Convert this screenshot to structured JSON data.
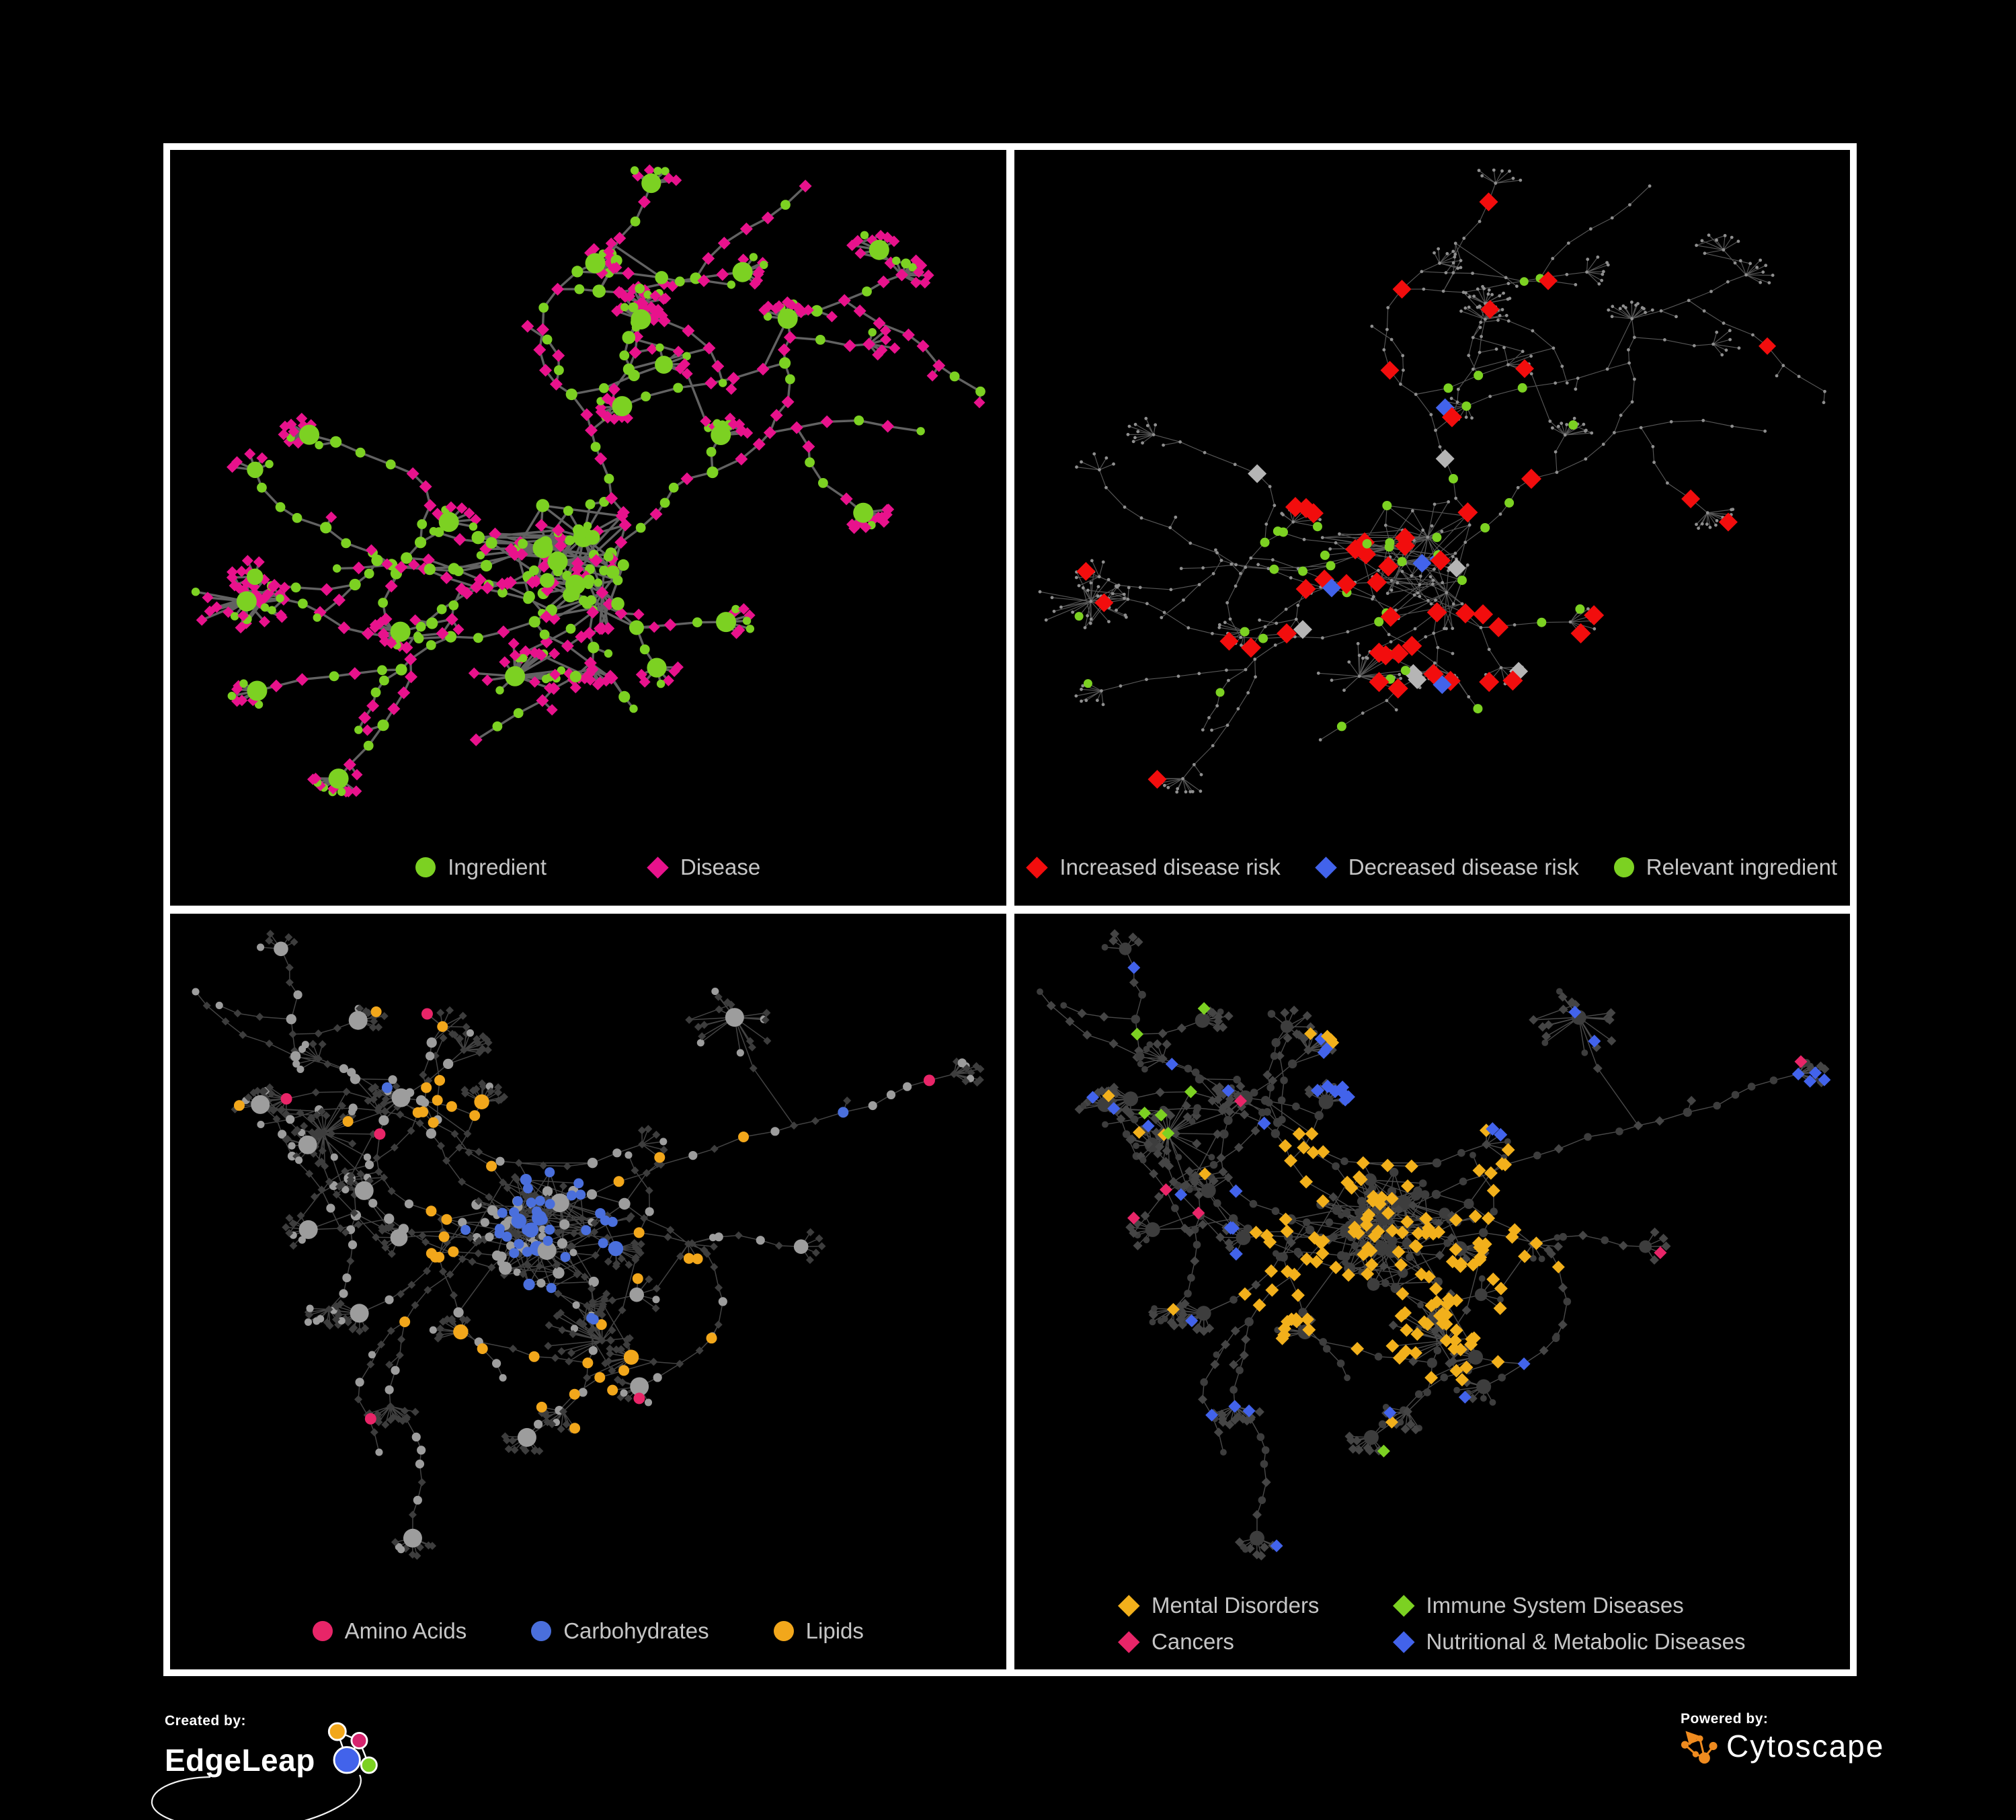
{
  "panels": [
    {
      "name": "ingredient-disease-network",
      "style": "p1",
      "row": 0,
      "legend_grid": false,
      "legend_rows": [
        [
          {
            "shape": "circle",
            "color_key": "green",
            "label": "Ingredient"
          },
          {
            "shape": "diamond",
            "color_key": "pink_magenta",
            "label": "Disease"
          }
        ]
      ]
    },
    {
      "name": "disease-risk-network",
      "style": "p2",
      "row": 0,
      "legend_grid": false,
      "legend_rows": [
        [
          {
            "shape": "diamond",
            "color_key": "red",
            "label": "Increased disease risk"
          },
          {
            "shape": "diamond",
            "color_key": "blue",
            "label": "Decreased disease risk"
          },
          {
            "shape": "circle",
            "color_key": "green",
            "label": "Relevant ingredient"
          }
        ]
      ]
    },
    {
      "name": "macronutrient-network",
      "style": "p3",
      "row": 1,
      "legend_grid": false,
      "legend_rows": [
        [
          {
            "shape": "circle",
            "color_key": "amino",
            "label": "Amino Acids"
          },
          {
            "shape": "circle",
            "color_key": "carb",
            "label": "Carbohydrates"
          },
          {
            "shape": "circle",
            "color_key": "lipid",
            "label": "Lipids"
          }
        ]
      ]
    },
    {
      "name": "disease-category-network",
      "style": "p4",
      "row": 1,
      "legend_grid": true,
      "legend_rows": [
        [
          {
            "shape": "diamond",
            "color_key": "mental",
            "label": "Mental Disorders"
          },
          {
            "shape": "diamond",
            "color_key": "immune",
            "label": "Immune System Diseases"
          }
        ],
        [
          {
            "shape": "diamond",
            "color_key": "cancer",
            "label": "Cancers"
          },
          {
            "shape": "diamond",
            "color_key": "nutri",
            "label": "Nutritional & Metabolic Diseases"
          }
        ]
      ]
    }
  ],
  "footer": {
    "created_by_label": "Created by:",
    "created_by_brand": "EdgeLeap",
    "powered_by_label": "Powered by:",
    "powered_by_brand": "Cytoscape"
  },
  "colors": {
    "frame": "#ffffff",
    "panel_bg": "#000000",
    "legend_text": "#c6c6c6",
    "green": "#7cd122",
    "pink_magenta": "#e8128c",
    "red": "#f20d0d",
    "blue": "#4263eb",
    "gray_diamond": "#b5b5b5",
    "dot": "#8f8f8f",
    "amino": "#e82568",
    "carb": "#4a6fdc",
    "lipid": "#f2a71b",
    "mental": "#f2b01b",
    "immune": "#7cd122",
    "cancer": "#e82568",
    "nutri": "#4263eb",
    "muted_circle": "#9d9d9d",
    "muted_dark": "#3d3d3d",
    "muted_diamond": "#454545",
    "edge1": "#6a6a6a",
    "edge2": "#8f8f8f",
    "edge3": "#a8a8a8",
    "edge4": "#9b9b9b",
    "edgeleap_orange": "#f2a71b",
    "edgeleap_pink": "#d6246e",
    "edgeleap_blue": "#4263eb",
    "edgeleap_green": "#7cd122",
    "cytoscape_orange": "#ef8b1f"
  },
  "network_params": {
    "rows": [
      {
        "seed": 20417,
        "hubs": 5,
        "hubSpread": 150,
        "satMin": 9,
        "satMax": 18,
        "arms": 20,
        "armLen": 16,
        "burstP": 0.52,
        "superstars": 2,
        "starMin": 14,
        "starMax": 26,
        "extraEdges": 60,
        "maxNodes": 560
      },
      {
        "seed": 73211,
        "hubs": 6,
        "hubSpread": 170,
        "satMin": 12,
        "satMax": 24,
        "arms": 20,
        "armLen": 15,
        "burstP": 0.5,
        "superstars": 3,
        "starMin": 16,
        "starMax": 30,
        "extraEdges": 110,
        "maxNodes": 660
      }
    ]
  }
}
